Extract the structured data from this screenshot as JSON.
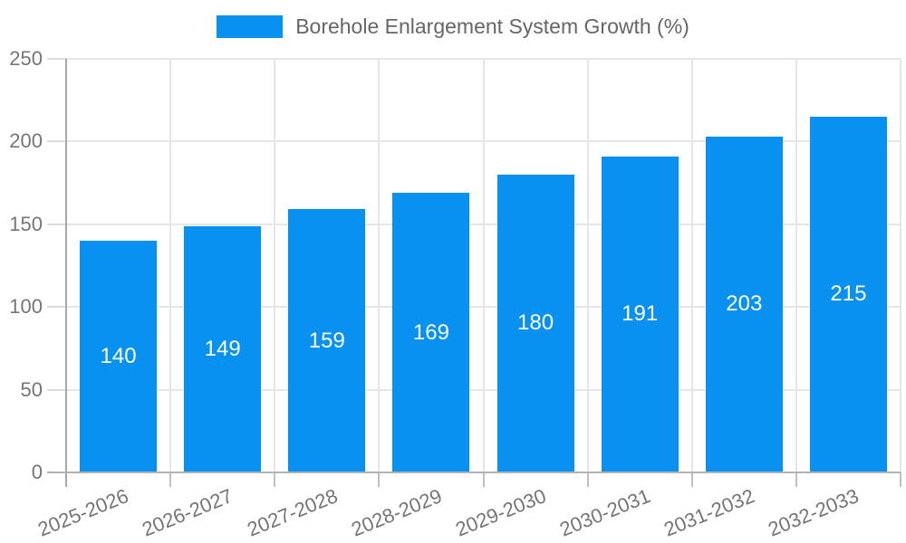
{
  "chart_data": {
    "type": "bar",
    "title": "Borehole Enlargement System Growth (%)",
    "legend": [
      {
        "label": "Borehole Enlargement System Growth (%)",
        "color": "#0991f2"
      }
    ],
    "legend_position": "top",
    "categories": [
      "2025-2026",
      "2026-2027",
      "2027-2028",
      "2028-2029",
      "2029-2030",
      "2030-2031",
      "2031-2032",
      "2032-2033"
    ],
    "values": [
      140,
      149,
      159,
      169,
      180,
      191,
      203,
      215
    ],
    "value_labels_shown": true,
    "xlabel": "",
    "ylabel": "",
    "ylim": [
      0,
      250
    ],
    "ytick_step": 50,
    "yticks": [
      0,
      50,
      100,
      150,
      200,
      250
    ],
    "grid": true,
    "colors": {
      "bar": "#0991f2",
      "value_label": "#ffffff",
      "gridline": "#e6e6e6",
      "axis": "#a6a6a6",
      "tick_label": "#757575",
      "legend_text": "#666666"
    }
  }
}
